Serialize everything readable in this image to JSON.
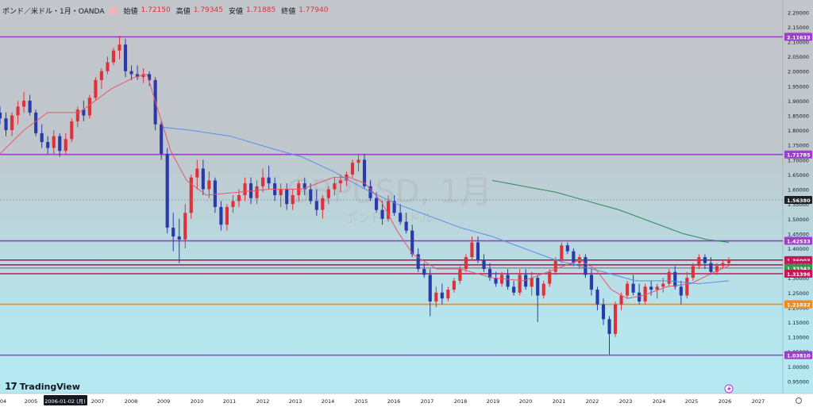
{
  "header": {
    "title": "ポンド／米ドル・1月・OANDA",
    "open_label": "始値",
    "open_value": "1.72150",
    "high_label": "高値",
    "high_value": "1.79345",
    "low_label": "安値",
    "low_value": "1.71885",
    "close_label": "終値",
    "close_value": "1.77940"
  },
  "watermark": {
    "symbol": "GBPUSD, 1月",
    "name": "ポンド／米ドル"
  },
  "logo": {
    "text": "TradingView"
  },
  "colors": {
    "up": "#e0313b",
    "down": "#2a3aa8",
    "ma_fast": "#e8566a",
    "ma_mid": "#5b8ee6",
    "ma_slow": "#2f8a5b",
    "purple": "#9b3fc7",
    "crimson": "#c2185b",
    "gray": "#8d8f93",
    "orange": "#f08a1c"
  },
  "chart_data": {
    "type": "candlestick",
    "title": "GBPUSD, 1月",
    "timeframe": "1月",
    "x_tick_labels": [
      "04",
      "2005",
      "2006-01-02 (月)",
      "2007",
      "2008",
      "2009",
      "2010",
      "2011",
      "2012",
      "2013",
      "2014",
      "2015",
      "2016",
      "2017",
      "2018",
      "2019",
      "2020",
      "2021",
      "2022",
      "2023",
      "2024",
      "2025",
      "2026",
      "2027"
    ],
    "crosshair_date": "2006-01-02 (月)",
    "y_tick_labels": [
      "2.20000",
      "2.15000",
      "2.10000",
      "2.05000",
      "2.00000",
      "1.95000",
      "1.90000",
      "1.85000",
      "1.80000",
      "1.75000",
      "1.70000",
      "1.65000",
      "1.60000",
      "1.55000",
      "1.50000",
      "1.45000",
      "1.40000",
      "1.35000",
      "1.30000",
      "1.25000",
      "1.20000",
      "1.15000",
      "1.10000",
      "1.05000",
      "1.00000",
      "0.95000"
    ],
    "ylim": [
      0.935,
      2.225
    ],
    "candles": [
      [
        1.86,
        1.88,
        1.82,
        1.84
      ],
      [
        1.84,
        1.86,
        1.78,
        1.8
      ],
      [
        1.8,
        1.86,
        1.78,
        1.85
      ],
      [
        1.85,
        1.9,
        1.82,
        1.88
      ],
      [
        1.88,
        1.93,
        1.86,
        1.9
      ],
      [
        1.9,
        1.92,
        1.85,
        1.86
      ],
      [
        1.86,
        1.87,
        1.78,
        1.79
      ],
      [
        1.79,
        1.82,
        1.74,
        1.76
      ],
      [
        1.76,
        1.78,
        1.72,
        1.74
      ],
      [
        1.74,
        1.8,
        1.72,
        1.78
      ],
      [
        1.78,
        1.79,
        1.71,
        1.73
      ],
      [
        1.73,
        1.79,
        1.72,
        1.77
      ],
      [
        1.77,
        1.84,
        1.76,
        1.83
      ],
      [
        1.83,
        1.88,
        1.81,
        1.87
      ],
      [
        1.87,
        1.9,
        1.83,
        1.85
      ],
      [
        1.85,
        1.92,
        1.84,
        1.91
      ],
      [
        1.91,
        1.98,
        1.9,
        1.97
      ],
      [
        1.97,
        2.01,
        1.94,
        2.0
      ],
      [
        2.0,
        2.05,
        1.99,
        2.03
      ],
      [
        2.03,
        2.08,
        2.02,
        2.07
      ],
      [
        2.07,
        2.12,
        2.04,
        2.09
      ],
      [
        2.09,
        2.11,
        1.98,
        2.0
      ],
      [
        2.0,
        2.02,
        1.97,
        1.99
      ],
      [
        1.99,
        2.02,
        1.97,
        1.98
      ],
      [
        1.98,
        2.01,
        1.96,
        1.99
      ],
      [
        1.99,
        2.0,
        1.95,
        1.97
      ],
      [
        1.97,
        1.98,
        1.8,
        1.82
      ],
      [
        1.82,
        1.83,
        1.7,
        1.72
      ],
      [
        1.72,
        1.74,
        1.45,
        1.47
      ],
      [
        1.47,
        1.52,
        1.39,
        1.44
      ],
      [
        1.44,
        1.5,
        1.35,
        1.43
      ],
      [
        1.43,
        1.55,
        1.4,
        1.52
      ],
      [
        1.52,
        1.65,
        1.5,
        1.64
      ],
      [
        1.64,
        1.7,
        1.6,
        1.67
      ],
      [
        1.67,
        1.7,
        1.58,
        1.6
      ],
      [
        1.6,
        1.66,
        1.57,
        1.63
      ],
      [
        1.63,
        1.64,
        1.52,
        1.54
      ],
      [
        1.54,
        1.56,
        1.46,
        1.48
      ],
      [
        1.48,
        1.55,
        1.46,
        1.54
      ],
      [
        1.54,
        1.58,
        1.52,
        1.56
      ],
      [
        1.56,
        1.6,
        1.54,
        1.58
      ],
      [
        1.58,
        1.64,
        1.56,
        1.62
      ],
      [
        1.62,
        1.64,
        1.55,
        1.57
      ],
      [
        1.57,
        1.63,
        1.55,
        1.61
      ],
      [
        1.61,
        1.67,
        1.59,
        1.64
      ],
      [
        1.64,
        1.68,
        1.6,
        1.62
      ],
      [
        1.62,
        1.64,
        1.56,
        1.58
      ],
      [
        1.58,
        1.62,
        1.54,
        1.6
      ],
      [
        1.6,
        1.62,
        1.53,
        1.55
      ],
      [
        1.55,
        1.6,
        1.53,
        1.58
      ],
      [
        1.58,
        1.63,
        1.56,
        1.62
      ],
      [
        1.62,
        1.64,
        1.58,
        1.6
      ],
      [
        1.6,
        1.62,
        1.55,
        1.56
      ],
      [
        1.56,
        1.6,
        1.51,
        1.53
      ],
      [
        1.53,
        1.58,
        1.5,
        1.57
      ],
      [
        1.57,
        1.61,
        1.55,
        1.6
      ],
      [
        1.6,
        1.64,
        1.58,
        1.62
      ],
      [
        1.62,
        1.65,
        1.59,
        1.63
      ],
      [
        1.63,
        1.66,
        1.61,
        1.65
      ],
      [
        1.65,
        1.7,
        1.64,
        1.69
      ],
      [
        1.69,
        1.72,
        1.66,
        1.7
      ],
      [
        1.7,
        1.72,
        1.6,
        1.61
      ],
      [
        1.61,
        1.63,
        1.56,
        1.57
      ],
      [
        1.57,
        1.59,
        1.52,
        1.53
      ],
      [
        1.53,
        1.56,
        1.48,
        1.5
      ],
      [
        1.5,
        1.58,
        1.49,
        1.56
      ],
      [
        1.56,
        1.58,
        1.51,
        1.52
      ],
      [
        1.52,
        1.55,
        1.48,
        1.49
      ],
      [
        1.49,
        1.52,
        1.45,
        1.46
      ],
      [
        1.46,
        1.48,
        1.37,
        1.38
      ],
      [
        1.38,
        1.4,
        1.32,
        1.33
      ],
      [
        1.33,
        1.35,
        1.3,
        1.31
      ],
      [
        1.31,
        1.33,
        1.17,
        1.22
      ],
      [
        1.22,
        1.27,
        1.2,
        1.25
      ],
      [
        1.25,
        1.28,
        1.21,
        1.23
      ],
      [
        1.23,
        1.27,
        1.22,
        1.26
      ],
      [
        1.26,
        1.3,
        1.25,
        1.29
      ],
      [
        1.29,
        1.34,
        1.28,
        1.33
      ],
      [
        1.33,
        1.38,
        1.32,
        1.37
      ],
      [
        1.37,
        1.44,
        1.36,
        1.42
      ],
      [
        1.42,
        1.44,
        1.35,
        1.36
      ],
      [
        1.36,
        1.38,
        1.32,
        1.33
      ],
      [
        1.33,
        1.35,
        1.29,
        1.3
      ],
      [
        1.3,
        1.32,
        1.27,
        1.28
      ],
      [
        1.28,
        1.32,
        1.27,
        1.31
      ],
      [
        1.31,
        1.33,
        1.26,
        1.27
      ],
      [
        1.27,
        1.29,
        1.24,
        1.25
      ],
      [
        1.25,
        1.33,
        1.24,
        1.31
      ],
      [
        1.31,
        1.33,
        1.26,
        1.27
      ],
      [
        1.27,
        1.32,
        1.24,
        1.3
      ],
      [
        1.3,
        1.31,
        1.15,
        1.24
      ],
      [
        1.24,
        1.29,
        1.23,
        1.28
      ],
      [
        1.28,
        1.33,
        1.27,
        1.32
      ],
      [
        1.32,
        1.37,
        1.31,
        1.36
      ],
      [
        1.36,
        1.42,
        1.35,
        1.41
      ],
      [
        1.41,
        1.42,
        1.38,
        1.39
      ],
      [
        1.39,
        1.4,
        1.34,
        1.35
      ],
      [
        1.35,
        1.38,
        1.33,
        1.37
      ],
      [
        1.37,
        1.38,
        1.3,
        1.31
      ],
      [
        1.31,
        1.33,
        1.24,
        1.26
      ],
      [
        1.26,
        1.27,
        1.19,
        1.21
      ],
      [
        1.21,
        1.23,
        1.14,
        1.16
      ],
      [
        1.16,
        1.17,
        1.04,
        1.11
      ],
      [
        1.11,
        1.22,
        1.1,
        1.21
      ],
      [
        1.21,
        1.25,
        1.19,
        1.24
      ],
      [
        1.24,
        1.29,
        1.23,
        1.28
      ],
      [
        1.28,
        1.31,
        1.24,
        1.25
      ],
      [
        1.25,
        1.28,
        1.21,
        1.22
      ],
      [
        1.22,
        1.28,
        1.21,
        1.27
      ],
      [
        1.27,
        1.29,
        1.24,
        1.26
      ],
      [
        1.26,
        1.28,
        1.23,
        1.27
      ],
      [
        1.27,
        1.3,
        1.25,
        1.28
      ],
      [
        1.28,
        1.33,
        1.27,
        1.32
      ],
      [
        1.32,
        1.34,
        1.26,
        1.27
      ],
      [
        1.27,
        1.29,
        1.21,
        1.24
      ],
      [
        1.24,
        1.32,
        1.23,
        1.3
      ],
      [
        1.3,
        1.35,
        1.29,
        1.34
      ],
      [
        1.34,
        1.38,
        1.33,
        1.37
      ],
      [
        1.37,
        1.38,
        1.33,
        1.35
      ],
      [
        1.35,
        1.37,
        1.31,
        1.32
      ],
      [
        1.32,
        1.35,
        1.31,
        1.34
      ],
      [
        1.34,
        1.36,
        1.33,
        1.35
      ],
      [
        1.35,
        1.37,
        1.34,
        1.36
      ]
    ],
    "candle_x_range": [
      0,
      918
    ],
    "moving_averages": [
      {
        "color": "#e8566a",
        "points": [
          [
            0,
            1.72
          ],
          [
            30,
            1.8
          ],
          [
            60,
            1.86
          ],
          [
            100,
            1.86
          ],
          [
            140,
            1.94
          ],
          [
            170,
            1.98
          ],
          [
            185,
            1.99
          ],
          [
            200,
            1.86
          ],
          [
            215,
            1.73
          ],
          [
            235,
            1.63
          ],
          [
            260,
            1.58
          ],
          [
            300,
            1.59
          ],
          [
            340,
            1.6
          ],
          [
            380,
            1.6
          ],
          [
            420,
            1.64
          ],
          [
            440,
            1.64
          ],
          [
            460,
            1.62
          ],
          [
            480,
            1.56
          ],
          [
            500,
            1.46
          ],
          [
            520,
            1.38
          ],
          [
            550,
            1.33
          ],
          [
            580,
            1.33
          ],
          [
            620,
            1.3
          ],
          [
            660,
            1.29
          ],
          [
            700,
            1.33
          ],
          [
            730,
            1.36
          ],
          [
            750,
            1.33
          ],
          [
            770,
            1.26
          ],
          [
            790,
            1.23
          ],
          [
            810,
            1.24
          ],
          [
            840,
            1.27
          ],
          [
            870,
            1.28
          ],
          [
            900,
            1.32
          ],
          [
            918,
            1.34
          ]
        ]
      },
      {
        "color": "#5b8ee6",
        "points": [
          [
            205,
            1.81
          ],
          [
            240,
            1.8
          ],
          [
            290,
            1.78
          ],
          [
            340,
            1.74
          ],
          [
            380,
            1.71
          ],
          [
            420,
            1.66
          ],
          [
            460,
            1.6
          ],
          [
            500,
            1.55
          ],
          [
            540,
            1.51
          ],
          [
            580,
            1.47
          ],
          [
            620,
            1.44
          ],
          [
            660,
            1.4
          ],
          [
            700,
            1.36
          ],
          [
            730,
            1.34
          ],
          [
            760,
            1.32
          ],
          [
            800,
            1.29
          ],
          [
            840,
            1.29
          ],
          [
            880,
            1.28
          ],
          [
            918,
            1.29
          ]
        ]
      },
      {
        "color": "#2f8a5b",
        "points": [
          [
            620,
            1.63
          ],
          [
            660,
            1.61
          ],
          [
            700,
            1.59
          ],
          [
            740,
            1.56
          ],
          [
            780,
            1.53
          ],
          [
            820,
            1.49
          ],
          [
            860,
            1.45
          ],
          [
            890,
            1.43
          ],
          [
            918,
            1.42
          ]
        ]
      }
    ],
    "horizontal_levels": [
      {
        "value": 2.11633,
        "label": "2.11633",
        "color": "#9b3fc7"
      },
      {
        "value": 1.71785,
        "label": "1.71785",
        "color": "#9b3fc7"
      },
      {
        "value": 1.5638,
        "label": "1.56380",
        "color": "#8d8f93",
        "dashed": true,
        "tag_color": "#1d1f24"
      },
      {
        "value": 1.42533,
        "label": "1.42533",
        "color": "#9b3fc7"
      },
      {
        "value": 1.36003,
        "label": "1.36003",
        "color": "#c2185b"
      },
      {
        "value": 1.34391,
        "label": "1.34391",
        "color": "#c2185b"
      },
      {
        "value": 1.33342,
        "label": "1.33342",
        "color": "#8d8f93",
        "tag_color": "#2e9b4a"
      },
      {
        "value": 1.31396,
        "label": "1.31396",
        "color": "#c2185b"
      },
      {
        "value": 1.21032,
        "label": "1.21032",
        "color": "#f08a1c"
      },
      {
        "value": 1.0381,
        "label": "1.03810",
        "color": "#9b3fc7"
      }
    ]
  }
}
